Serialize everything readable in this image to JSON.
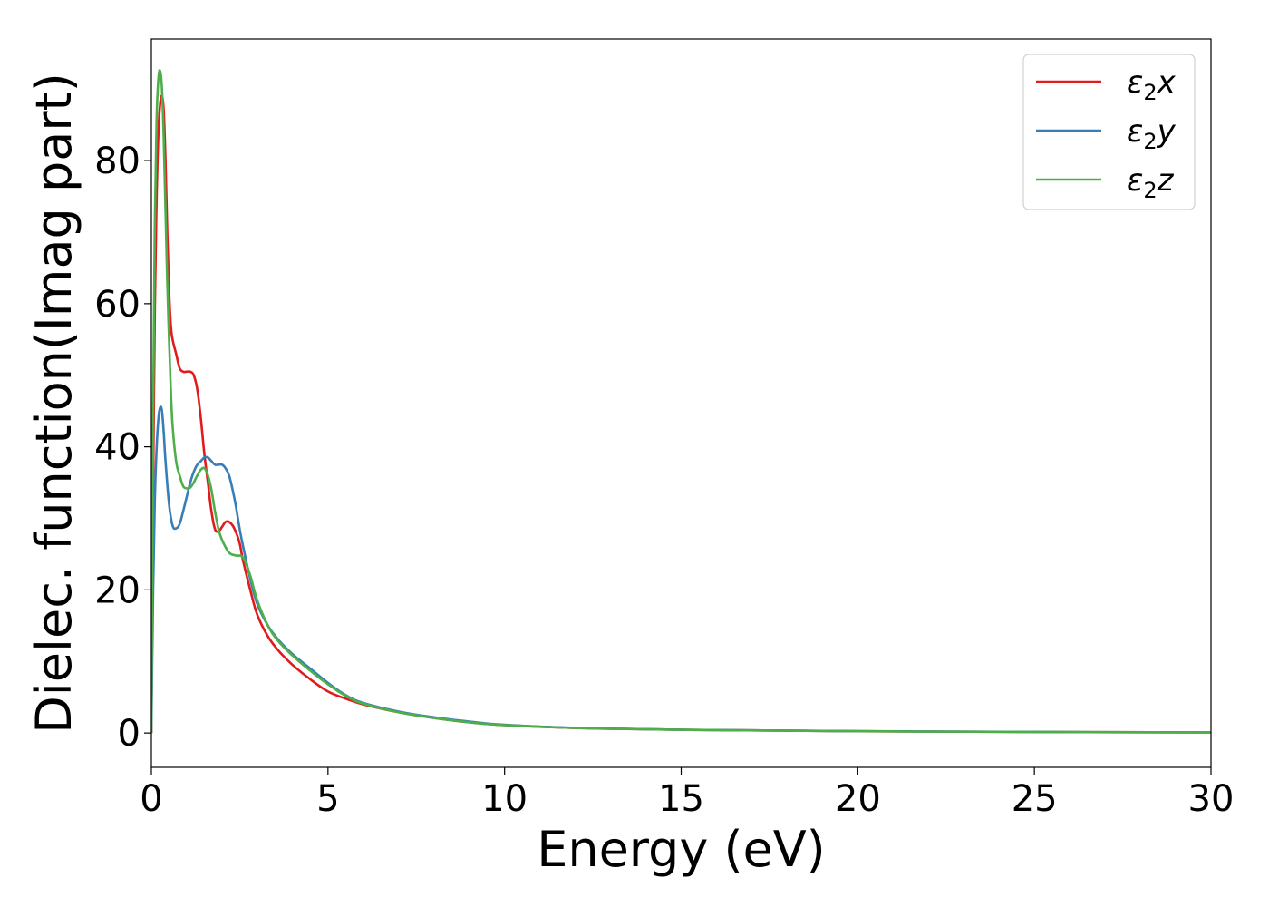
{
  "chart_data": {
    "type": "line",
    "xlabel": "Energy (eV)",
    "ylabel": "Dielec. function(Imag part)",
    "xlim": [
      0,
      30
    ],
    "ylim": [
      -4.8,
      97
    ],
    "xticks": [
      0,
      5,
      10,
      15,
      20,
      25,
      30
    ],
    "xtick_labels": [
      "0",
      "5",
      "10",
      "15",
      "20",
      "25",
      "30"
    ],
    "yticks": [
      0,
      20,
      40,
      60,
      80
    ],
    "ytick_labels": [
      "0",
      "20",
      "40",
      "60",
      "80"
    ],
    "grid": false,
    "legend_position": "top-right",
    "series": [
      {
        "name": "ε₂x",
        "legend_base": "ε",
        "legend_sub": "2",
        "legend_tail": "x",
        "color": "#e31a1c",
        "x": [
          0,
          0.05,
          0.1,
          0.15,
          0.2,
          0.25,
          0.3,
          0.35,
          0.4,
          0.45,
          0.5,
          0.55,
          0.6,
          0.7,
          0.8,
          0.9,
          1.0,
          1.1,
          1.2,
          1.3,
          1.4,
          1.5,
          1.6,
          1.7,
          1.8,
          1.9,
          2.0,
          2.1,
          2.2,
          2.3,
          2.4,
          2.5,
          2.6,
          2.8,
          3.0,
          3.3,
          3.6,
          4.0,
          4.5,
          5.0,
          5.5,
          6.0,
          7.0,
          8.0,
          9.0,
          10,
          12,
          15,
          20,
          25,
          30
        ],
        "y": [
          0,
          35,
          60,
          75,
          84,
          88,
          89,
          87,
          80,
          70,
          62,
          57,
          55,
          53,
          51,
          50.5,
          50.5,
          50.5,
          50,
          48,
          44,
          39,
          35,
          31,
          28.5,
          28.2,
          28.8,
          29.5,
          29.5,
          29,
          28,
          26.5,
          24,
          20,
          16.5,
          13.5,
          11.5,
          9.5,
          7.5,
          5.8,
          4.8,
          4.0,
          2.9,
          2.1,
          1.5,
          1.1,
          0.7,
          0.45,
          0.25,
          0.15,
          0.08
        ]
      },
      {
        "name": "ε₂y",
        "legend_base": "ε",
        "legend_sub": "2",
        "legend_tail": "y",
        "color": "#377eb8",
        "x": [
          0,
          0.05,
          0.1,
          0.15,
          0.2,
          0.25,
          0.3,
          0.35,
          0.4,
          0.5,
          0.6,
          0.7,
          0.8,
          0.9,
          1.0,
          1.1,
          1.2,
          1.3,
          1.4,
          1.5,
          1.6,
          1.7,
          1.8,
          1.9,
          2.0,
          2.1,
          2.2,
          2.3,
          2.4,
          2.5,
          2.6,
          2.8,
          3.0,
          3.3,
          3.6,
          4.0,
          4.5,
          5.0,
          5.5,
          6.0,
          7.0,
          8.0,
          9.0,
          10,
          12,
          15,
          20,
          25,
          30
        ],
        "y": [
          0,
          20,
          33,
          40,
          44,
          45.5,
          45,
          42,
          38,
          32,
          29,
          28.6,
          29.2,
          31,
          33,
          35,
          36.5,
          37.5,
          38,
          38.5,
          38.5,
          38,
          37.5,
          37.5,
          37.5,
          37,
          36,
          34,
          31.5,
          28.5,
          26,
          21.5,
          18,
          15,
          13,
          11,
          9,
          7,
          5.3,
          4.2,
          3.0,
          2.2,
          1.6,
          1.15,
          0.72,
          0.45,
          0.26,
          0.15,
          0.08
        ]
      },
      {
        "name": "ε₂z",
        "legend_base": "ε",
        "legend_sub": "2",
        "legend_tail": "z",
        "color": "#4daf4a",
        "x": [
          0,
          0.05,
          0.1,
          0.15,
          0.2,
          0.25,
          0.3,
          0.35,
          0.4,
          0.45,
          0.5,
          0.55,
          0.6,
          0.7,
          0.8,
          0.9,
          1.0,
          1.1,
          1.2,
          1.3,
          1.4,
          1.5,
          1.6,
          1.7,
          1.8,
          1.9,
          2.0,
          2.2,
          2.4,
          2.6,
          2.8,
          3.0,
          3.3,
          3.6,
          4.0,
          4.5,
          5.0,
          5.5,
          6.0,
          7.0,
          8.0,
          9.0,
          10,
          12,
          15,
          20,
          25,
          30
        ],
        "y": [
          0,
          45,
          72,
          86,
          91.5,
          92.5,
          90,
          83,
          73,
          63,
          55,
          48,
          43,
          38,
          36,
          34.5,
          34.2,
          34.3,
          35,
          36,
          36.8,
          37,
          36,
          34,
          31,
          28.5,
          27,
          25.2,
          24.8,
          24.5,
          22,
          18.5,
          15,
          12.8,
          10.8,
          8.7,
          6.8,
          5.2,
          4.1,
          2.9,
          2.1,
          1.5,
          1.1,
          0.7,
          0.45,
          0.25,
          0.15,
          0.08
        ]
      }
    ]
  }
}
